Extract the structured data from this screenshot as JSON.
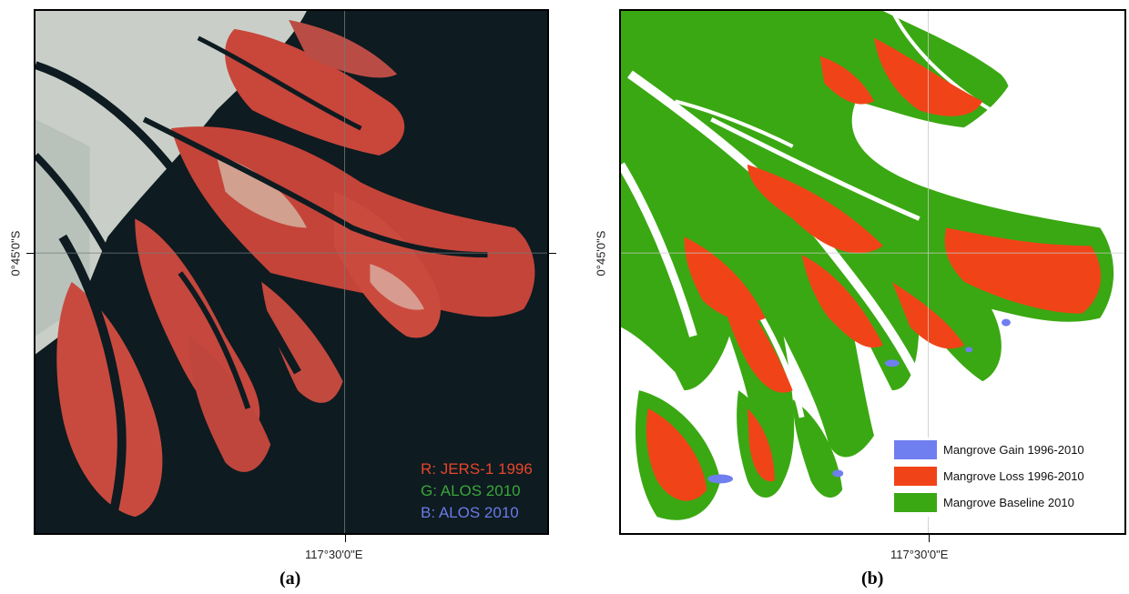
{
  "panel_a": {
    "caption": "(a)",
    "lat_label": "0°45'0\"S",
    "lon_label": "117°30'0\"E",
    "band_labels": [
      {
        "text": "R: JERS-1 1996",
        "color": "#e8452a"
      },
      {
        "text": "G: ALOS 2010",
        "color": "#3aa63a"
      },
      {
        "text": "B: ALOS 2010",
        "color": "#6a7ae8"
      }
    ]
  },
  "panel_b": {
    "caption": "(b)",
    "lat_label": "0°45'0\"S",
    "lon_label": "117°30'0\"E",
    "legend": [
      {
        "label": "Mangrove Gain 1996-2010",
        "color": "#6f7ff0"
      },
      {
        "label": "Mangrove Loss 1996-2010",
        "color": "#f04418"
      },
      {
        "label": "Mangrove Baseline 2010",
        "color": "#3aa812"
      }
    ]
  }
}
